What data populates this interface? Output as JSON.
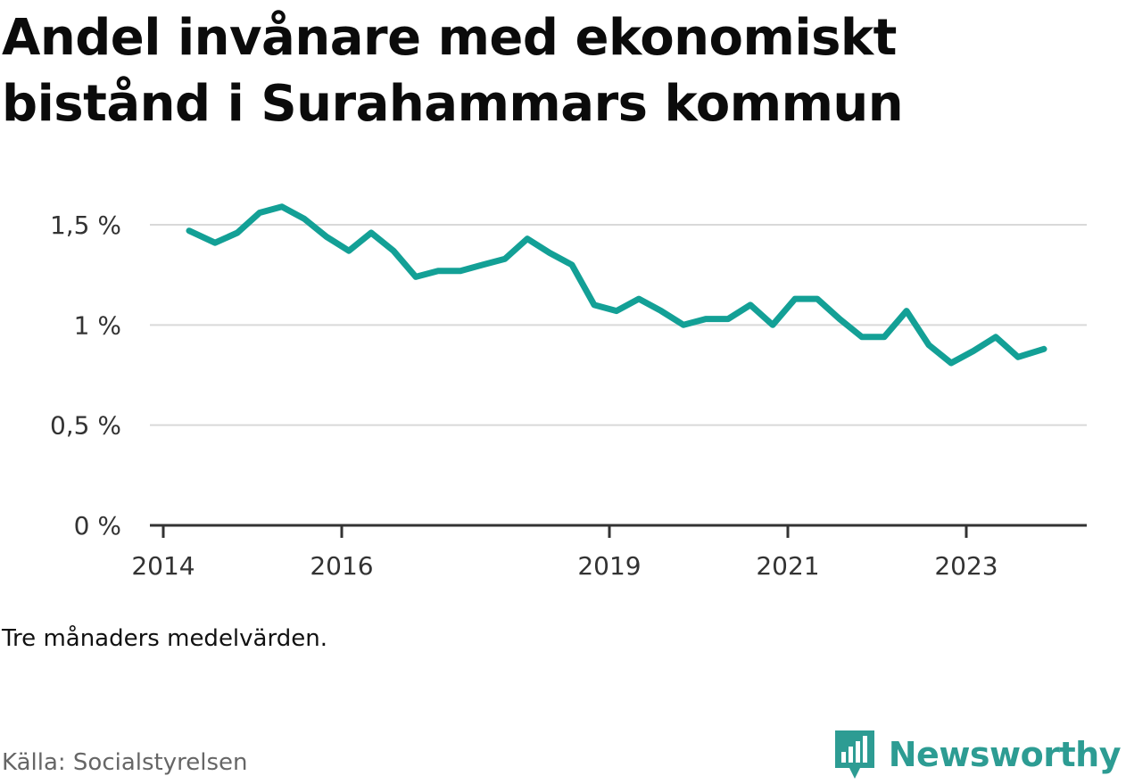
{
  "title": "Andel invånare med ekonomiskt bistånd i Surahammars kommun",
  "note": "Tre månaders medelvärden.",
  "source": "Källa: Socialstyrelsen",
  "brand": {
    "name": "Newsworthy",
    "icon": "newsworthy-logo-icon",
    "color": "#2d9c93"
  },
  "colors": {
    "line": "#13a096",
    "grid": "#d9d9d9",
    "axis": "#333333"
  },
  "chart_data": {
    "type": "line",
    "title": "Andel invånare med ekonomiskt bistånd i Surahammars kommun",
    "xlabel": "",
    "ylabel": "",
    "grid": true,
    "x_ticks": [
      {
        "value": 2014.0,
        "label": "2014"
      },
      {
        "value": 2016.0,
        "label": "2016"
      },
      {
        "value": 2019.0,
        "label": "2019"
      },
      {
        "value": 2021.0,
        "label": "2021"
      },
      {
        "value": 2023.0,
        "label": "2023"
      }
    ],
    "y_ticks": [
      {
        "value": 0,
        "label": "0 %"
      },
      {
        "value": 0.5,
        "label": "0,5 %"
      },
      {
        "value": 1,
        "label": "1 %"
      },
      {
        "value": 1.5,
        "label": "1,5 %"
      }
    ],
    "xlim": [
      2013.85,
      2024.35
    ],
    "ylim": [
      0,
      1.5
    ],
    "series": [
      {
        "values": [
          [
            2014.29,
            1.47
          ],
          [
            2014.58,
            1.41
          ],
          [
            2014.83,
            1.46
          ],
          [
            2015.08,
            1.56
          ],
          [
            2015.33,
            1.59
          ],
          [
            2015.58,
            1.53
          ],
          [
            2015.83,
            1.44
          ],
          [
            2016.08,
            1.37
          ],
          [
            2016.33,
            1.46
          ],
          [
            2016.58,
            1.37
          ],
          [
            2016.83,
            1.24
          ],
          [
            2017.08,
            1.27
          ],
          [
            2017.33,
            1.27
          ],
          [
            2017.58,
            1.3
          ],
          [
            2017.83,
            1.33
          ],
          [
            2018.08,
            1.43
          ],
          [
            2018.33,
            1.36
          ],
          [
            2018.58,
            1.3
          ],
          [
            2018.83,
            1.1
          ],
          [
            2019.08,
            1.07
          ],
          [
            2019.33,
            1.13
          ],
          [
            2019.58,
            1.07
          ],
          [
            2019.83,
            1.0
          ],
          [
            2020.08,
            1.03
          ],
          [
            2020.33,
            1.03
          ],
          [
            2020.58,
            1.1
          ],
          [
            2020.83,
            1.0
          ],
          [
            2021.08,
            1.13
          ],
          [
            2021.33,
            1.13
          ],
          [
            2021.58,
            1.03
          ],
          [
            2021.83,
            0.94
          ],
          [
            2022.08,
            0.94
          ],
          [
            2022.33,
            1.07
          ],
          [
            2022.58,
            0.9
          ],
          [
            2022.83,
            0.81
          ],
          [
            2023.08,
            0.87
          ],
          [
            2023.33,
            0.94
          ],
          [
            2023.58,
            0.84
          ],
          [
            2023.87,
            0.88
          ]
        ]
      }
    ]
  }
}
